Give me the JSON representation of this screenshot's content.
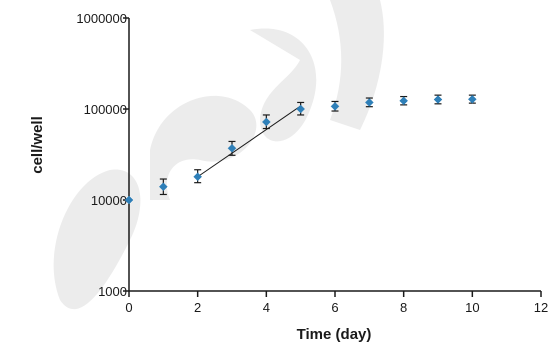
{
  "chart_data": {
    "type": "scatter",
    "xlabel": "Time (day)",
    "ylabel": "cell/well",
    "xlim": [
      0,
      12
    ],
    "ylim": [
      1000,
      1000000
    ],
    "y_scale": "log",
    "x_ticks": [
      0,
      2,
      4,
      6,
      8,
      10,
      12
    ],
    "x_tick_labels": [
      "0",
      "2",
      "4",
      "6",
      "8",
      "10",
      "12"
    ],
    "y_ticks": [
      1000,
      10000,
      100000,
      1000000
    ],
    "y_tick_labels": [
      "1000",
      "10000",
      "100000",
      "1000000"
    ],
    "grid": false,
    "legend": "none",
    "marker": "diamond",
    "marker_color": "#2e7fb8",
    "errorbar_color": "#1a1a1a",
    "series": [
      {
        "x": [
          0,
          1,
          2,
          3,
          4,
          5,
          6,
          7,
          8,
          9,
          10
        ],
        "y": [
          10000,
          14000,
          18000,
          37000,
          72000,
          100000,
          107000,
          118000,
          123000,
          127000,
          128000
        ],
        "y_err_low": [
          0,
          11500,
          15500,
          31000,
          61000,
          86000,
          95000,
          106000,
          111000,
          114000,
          116000
        ],
        "y_err_high": [
          0,
          17000,
          21500,
          44000,
          86000,
          118000,
          121000,
          132000,
          137000,
          142000,
          142000
        ]
      }
    ],
    "fit_line": {
      "x": [
        2,
        5
      ],
      "y": [
        18000,
        108000
      ]
    }
  }
}
